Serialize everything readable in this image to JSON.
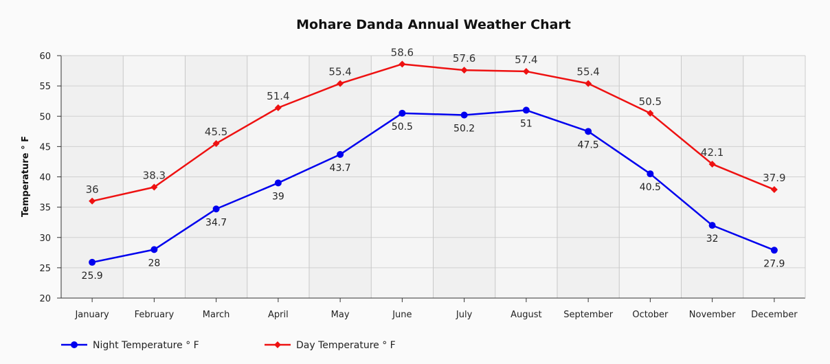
{
  "chart_data": {
    "type": "line",
    "title": "Mohare Danda Annual Weather Chart",
    "xlabel": "",
    "ylabel": "Temperature ° F",
    "ylim": [
      20,
      60
    ],
    "yticks": [
      20,
      25,
      30,
      35,
      40,
      45,
      50,
      55,
      60
    ],
    "grid": true,
    "legend_position": "bottom-left",
    "categories": [
      "January",
      "February",
      "March",
      "April",
      "May",
      "June",
      "July",
      "August",
      "September",
      "October",
      "November",
      "December"
    ],
    "series": [
      {
        "name": "Night Temperature ° F",
        "color": "#0000ee",
        "marker": "circle",
        "values": [
          25.9,
          28,
          34.7,
          39,
          43.7,
          50.5,
          50.2,
          51,
          47.5,
          40.5,
          32,
          27.9
        ],
        "label_position": "below"
      },
      {
        "name": "Day Temperature ° F",
        "color": "#ee1111",
        "marker": "diamond",
        "values": [
          36,
          38.3,
          45.5,
          51.4,
          55.4,
          58.6,
          57.6,
          57.4,
          55.4,
          50.5,
          42.1,
          37.9
        ],
        "label_position": "above"
      }
    ]
  }
}
